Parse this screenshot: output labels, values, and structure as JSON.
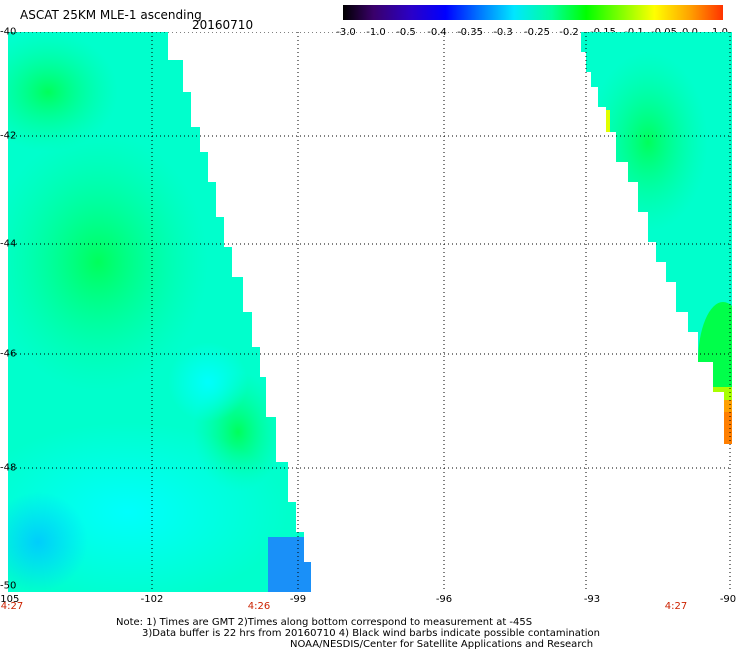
{
  "header": {
    "title": "ASCAT 25KM MLE-1 ascending",
    "date": "20160710"
  },
  "colorbar": {
    "ticks": [
      "-3.0",
      "-1.0",
      "-0.5",
      "-0.4",
      "-0.35",
      "-0.3",
      "-0.25",
      "-0.2",
      "-0.15",
      "-0.1",
      "-0.05",
      "0.0",
      "1.0"
    ]
  },
  "axes": {
    "x_labels": [
      "-105",
      "-102",
      "-99",
      "-96",
      "-93",
      "-90"
    ],
    "y_labels": [
      "-40",
      "-42",
      "-44",
      "-46",
      "-48",
      "-50"
    ]
  },
  "times": {
    "left": "4:27",
    "mid": "4:26",
    "right": "4:27"
  },
  "notes": {
    "line1": "Note: 1) Times are GMT 2)Times along bottom correspond to measurement at -45S",
    "line2": "3)Data buffer is 22 hrs from 20160710 4) Black wind barbs indicate possible contamination",
    "line3": "NOAA/NESDIS/Center for Satellite Applications and Research"
  },
  "colors": {
    "cyan": "#00ffff",
    "aqua_green": "#00ff99",
    "green": "#00ff55",
    "blue": "#1e90ff",
    "orange": "#ff8c00"
  }
}
